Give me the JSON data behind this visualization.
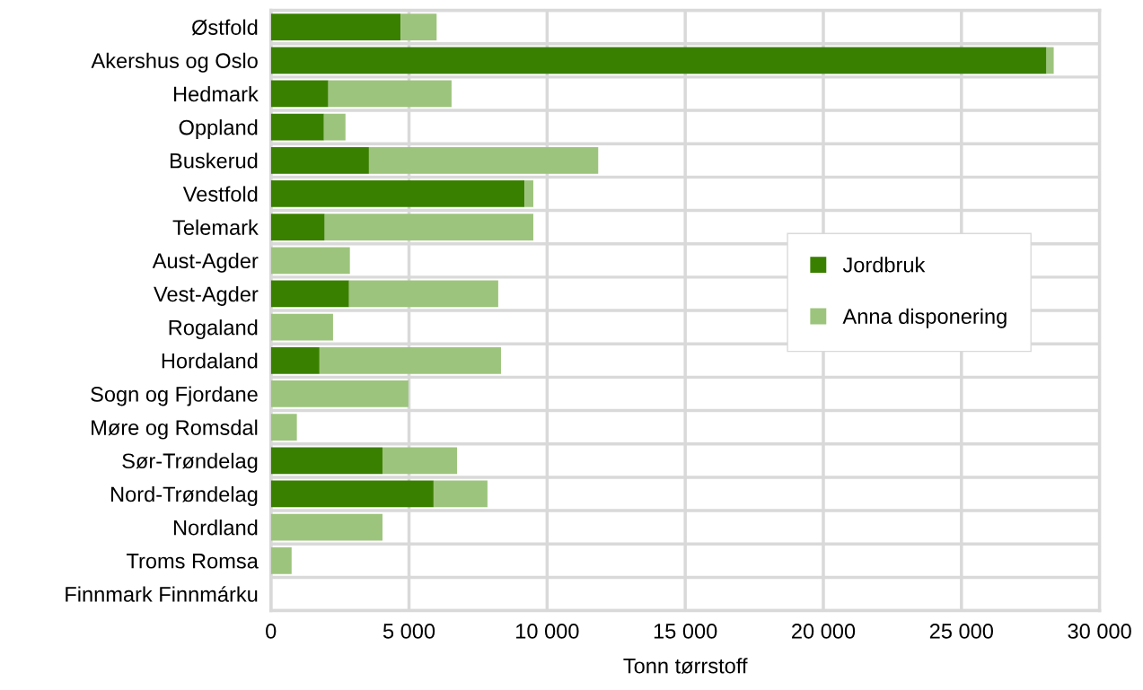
{
  "chart_data": {
    "type": "bar",
    "orientation": "horizontal",
    "stacked": true,
    "categories": [
      "Østfold",
      "Akershus og Oslo",
      "Hedmark",
      "Oppland",
      "Buskerud",
      "Vestfold",
      "Telemark",
      "Aust-Agder",
      "Vest-Agder",
      "Rogaland",
      "Hordaland",
      "Sogn og Fjordane",
      "Møre og Romsdal",
      "Sør-Trøndelag",
      "Nord-Trøndelag",
      "Nordland",
      "Troms Romsa",
      "Finnmark Finnmárku"
    ],
    "series": [
      {
        "name": "Jordbruk",
        "color": "#3a8000",
        "values": [
          4700,
          28080,
          2080,
          1920,
          3550,
          9180,
          1950,
          0,
          2830,
          0,
          1760,
          0,
          0,
          4040,
          5890,
          0,
          0,
          0
        ]
      },
      {
        "name": "Anna disponering",
        "color": "#9dc47c",
        "values": [
          1300,
          260,
          4460,
          780,
          8300,
          320,
          7550,
          2860,
          5400,
          2250,
          6570,
          4980,
          940,
          2700,
          1950,
          4040,
          750,
          0
        ]
      }
    ],
    "xlabel": "Tonn tørrstoff",
    "xlim": [
      0,
      30000
    ],
    "xticks": [
      0,
      {
        "value": 5000,
        "label": "5 000"
      },
      {
        "value": 10000,
        "label": "10 000"
      },
      {
        "value": 15000,
        "label": "15 000"
      },
      {
        "value": 20000,
        "label": "20 000"
      },
      {
        "value": 25000,
        "label": "25 000"
      },
      {
        "value": 30000,
        "label": "30 000"
      }
    ],
    "grid": true,
    "legend": "right"
  }
}
